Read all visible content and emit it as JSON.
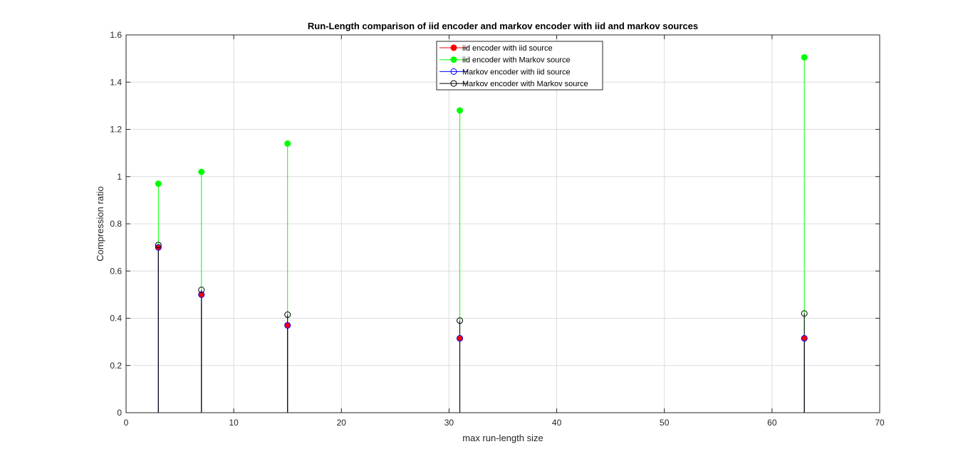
{
  "chart_data": {
    "type": "stem",
    "title": "Run-Length comparison of iid encoder and markov encoder with iid and markov sources",
    "xlabel": "max run-length size",
    "ylabel": "Compression ratio",
    "xlim": [
      0,
      70
    ],
    "ylim": [
      0,
      1.6
    ],
    "xticks": [
      0,
      10,
      20,
      30,
      40,
      50,
      60,
      70
    ],
    "yticks": [
      0,
      0.2,
      0.4,
      0.6,
      0.8,
      1,
      1.2,
      1.4,
      1.6
    ],
    "xtick_labels": [
      "0",
      "10",
      "20",
      "30",
      "40",
      "50",
      "60",
      "70"
    ],
    "ytick_labels": [
      "0",
      "0.2",
      "0.4",
      "0.6",
      "0.8",
      "1",
      "1.2",
      "1.4",
      "1.6"
    ],
    "grid": true,
    "legend_position": "top-center",
    "x": [
      3,
      7,
      15,
      31,
      63
    ],
    "series": [
      {
        "name": "iid encoder with iid source",
        "values": [
          0.7,
          0.5,
          0.37,
          0.315,
          0.315
        ],
        "color": "#ff0000",
        "marker": "filled-circle"
      },
      {
        "name": "iid encoder with Markov source",
        "values": [
          0.97,
          1.02,
          1.14,
          1.28,
          1.505
        ],
        "color": "#00ff00",
        "marker": "filled-circle"
      },
      {
        "name": "Markov encoder with iid source",
        "values": [
          0.7,
          0.5,
          0.37,
          0.315,
          0.315
        ],
        "color": "#0000ff",
        "marker": "open-circle"
      },
      {
        "name": "Markov encoder with Markov source",
        "values": [
          0.71,
          0.52,
          0.415,
          0.39,
          0.42
        ],
        "color": "#000000",
        "marker": "open-circle"
      }
    ]
  }
}
